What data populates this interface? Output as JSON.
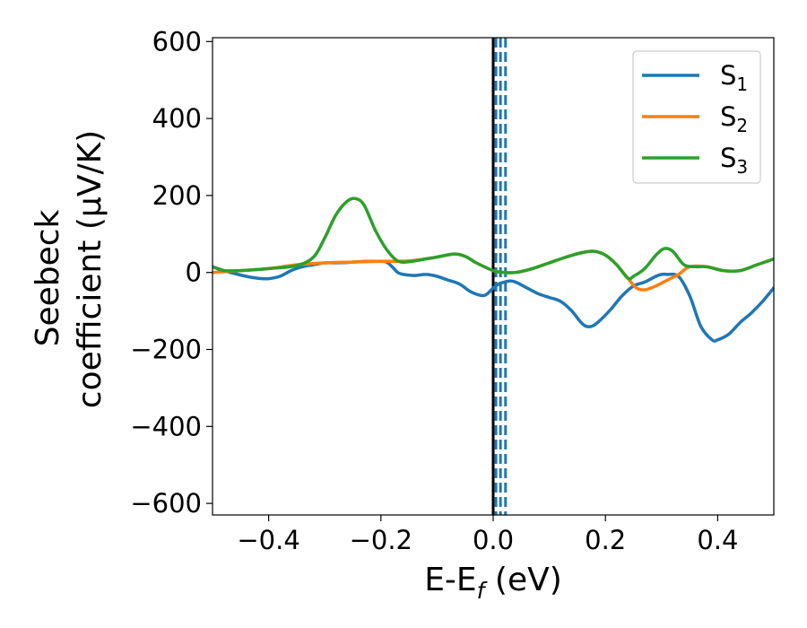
{
  "chart_data": {
    "type": "line",
    "xlabel": {
      "main": "E-E",
      "sub": "f",
      "rest": " (eV)"
    },
    "ylabel": {
      "line1": "Seebeck",
      "line2": "coefficient  (μV/K)"
    },
    "xlim": [
      -0.5,
      0.5
    ],
    "ylim": [
      -630,
      610
    ],
    "xticks": [
      -0.4,
      -0.2,
      0.0,
      0.2,
      0.4
    ],
    "xtick_labels": [
      "−0.4",
      "−0.2",
      "0.0",
      "0.2",
      "0.4"
    ],
    "yticks": [
      -600,
      -400,
      -200,
      0,
      200,
      400,
      600
    ],
    "ytick_labels": [
      "−600",
      "−400",
      "−200",
      "0",
      "200",
      "400",
      "600"
    ],
    "grid": false,
    "legend_position": "top-right",
    "vertical_lines": [
      {
        "x": 0.0,
        "color": "#000000",
        "style": "solid"
      },
      {
        "x": 0.005,
        "color": "#1f77b4",
        "style": "dashed"
      },
      {
        "x": 0.013,
        "color": "#1f77b4",
        "style": "dashed"
      },
      {
        "x": 0.022,
        "color": "#1f77b4",
        "style": "dashed"
      }
    ],
    "series": [
      {
        "name": "S",
        "sub": "1",
        "color": "#1f77b4",
        "points": [
          [
            -0.5,
            15
          ],
          [
            -0.48,
            5
          ],
          [
            -0.46,
            -3
          ],
          [
            -0.44,
            -10
          ],
          [
            -0.42,
            -15
          ],
          [
            -0.4,
            -16
          ],
          [
            -0.38,
            -10
          ],
          [
            -0.36,
            5
          ],
          [
            -0.34,
            15
          ],
          [
            -0.32,
            20
          ],
          [
            -0.3,
            25
          ],
          [
            -0.28,
            25
          ],
          [
            -0.26,
            26
          ],
          [
            -0.24,
            28
          ],
          [
            -0.22,
            29
          ],
          [
            -0.2,
            29
          ],
          [
            -0.19,
            27
          ],
          [
            -0.18,
            15
          ],
          [
            -0.17,
            0
          ],
          [
            -0.16,
            -5
          ],
          [
            -0.14,
            -8
          ],
          [
            -0.12,
            -5
          ],
          [
            -0.1,
            -10
          ],
          [
            -0.08,
            -20
          ],
          [
            -0.06,
            -30
          ],
          [
            -0.04,
            -50
          ],
          [
            -0.02,
            -60
          ],
          [
            -0.01,
            -55
          ],
          [
            0.0,
            -40
          ],
          [
            0.01,
            -30
          ],
          [
            0.02,
            -25
          ],
          [
            0.03,
            -22
          ],
          [
            0.04,
            -25
          ],
          [
            0.06,
            -40
          ],
          [
            0.08,
            -55
          ],
          [
            0.1,
            -65
          ],
          [
            0.12,
            -75
          ],
          [
            0.14,
            -100
          ],
          [
            0.16,
            -135
          ],
          [
            0.175,
            -140
          ],
          [
            0.19,
            -125
          ],
          [
            0.21,
            -95
          ],
          [
            0.23,
            -60
          ],
          [
            0.25,
            -35
          ],
          [
            0.27,
            -25
          ],
          [
            0.29,
            -10
          ],
          [
            0.3,
            -5
          ],
          [
            0.31,
            -5
          ],
          [
            0.33,
            -10
          ],
          [
            0.35,
            -60
          ],
          [
            0.37,
            -140
          ],
          [
            0.39,
            -175
          ],
          [
            0.4,
            -175
          ],
          [
            0.42,
            -160
          ],
          [
            0.44,
            -130
          ],
          [
            0.46,
            -105
          ],
          [
            0.48,
            -75
          ],
          [
            0.5,
            -40
          ]
        ]
      },
      {
        "name": "S",
        "sub": "2",
        "color": "#ff7f0e",
        "points": [
          [
            -0.5,
            0
          ],
          [
            -0.45,
            5
          ],
          [
            -0.4,
            10
          ],
          [
            -0.35,
            20
          ],
          [
            -0.3,
            25
          ],
          [
            -0.25,
            27
          ],
          [
            -0.2,
            29
          ],
          [
            -0.15,
            30
          ],
          [
            -0.1,
            40
          ],
          [
            -0.07,
            48
          ],
          [
            -0.05,
            42
          ],
          [
            -0.03,
            25
          ],
          [
            0.0,
            5
          ],
          [
            0.02,
            0
          ],
          [
            0.04,
            0
          ],
          [
            0.07,
            10
          ],
          [
            0.1,
            25
          ],
          [
            0.13,
            40
          ],
          [
            0.16,
            52
          ],
          [
            0.18,
            55
          ],
          [
            0.2,
            45
          ],
          [
            0.22,
            20
          ],
          [
            0.24,
            -15
          ],
          [
            0.255,
            -40
          ],
          [
            0.27,
            -45
          ],
          [
            0.29,
            -35
          ],
          [
            0.31,
            -20
          ],
          [
            0.33,
            -5
          ],
          [
            0.35,
            15
          ],
          [
            0.38,
            15
          ],
          [
            0.41,
            5
          ],
          [
            0.44,
            5
          ],
          [
            0.47,
            20
          ],
          [
            0.5,
            35
          ]
        ]
      },
      {
        "name": "S",
        "sub": "3",
        "color": "#2ca02c",
        "points": [
          [
            -0.5,
            15
          ],
          [
            -0.48,
            5
          ],
          [
            -0.45,
            5
          ],
          [
            -0.4,
            10
          ],
          [
            -0.35,
            18
          ],
          [
            -0.32,
            40
          ],
          [
            -0.3,
            90
          ],
          [
            -0.28,
            150
          ],
          [
            -0.26,
            185
          ],
          [
            -0.245,
            192
          ],
          [
            -0.23,
            175
          ],
          [
            -0.21,
            110
          ],
          [
            -0.19,
            60
          ],
          [
            -0.17,
            30
          ],
          [
            -0.15,
            28
          ],
          [
            -0.12,
            35
          ],
          [
            -0.1,
            40
          ],
          [
            -0.07,
            48
          ],
          [
            -0.05,
            42
          ],
          [
            -0.03,
            25
          ],
          [
            0.0,
            5
          ],
          [
            0.02,
            0
          ],
          [
            0.04,
            0
          ],
          [
            0.07,
            10
          ],
          [
            0.1,
            25
          ],
          [
            0.13,
            40
          ],
          [
            0.16,
            52
          ],
          [
            0.18,
            55
          ],
          [
            0.2,
            45
          ],
          [
            0.22,
            20
          ],
          [
            0.24,
            -15
          ],
          [
            0.25,
            -10
          ],
          [
            0.27,
            10
          ],
          [
            0.29,
            45
          ],
          [
            0.305,
            62
          ],
          [
            0.32,
            55
          ],
          [
            0.34,
            20
          ],
          [
            0.36,
            15
          ],
          [
            0.38,
            15
          ],
          [
            0.41,
            5
          ],
          [
            0.44,
            5
          ],
          [
            0.47,
            20
          ],
          [
            0.5,
            35
          ]
        ]
      }
    ]
  }
}
